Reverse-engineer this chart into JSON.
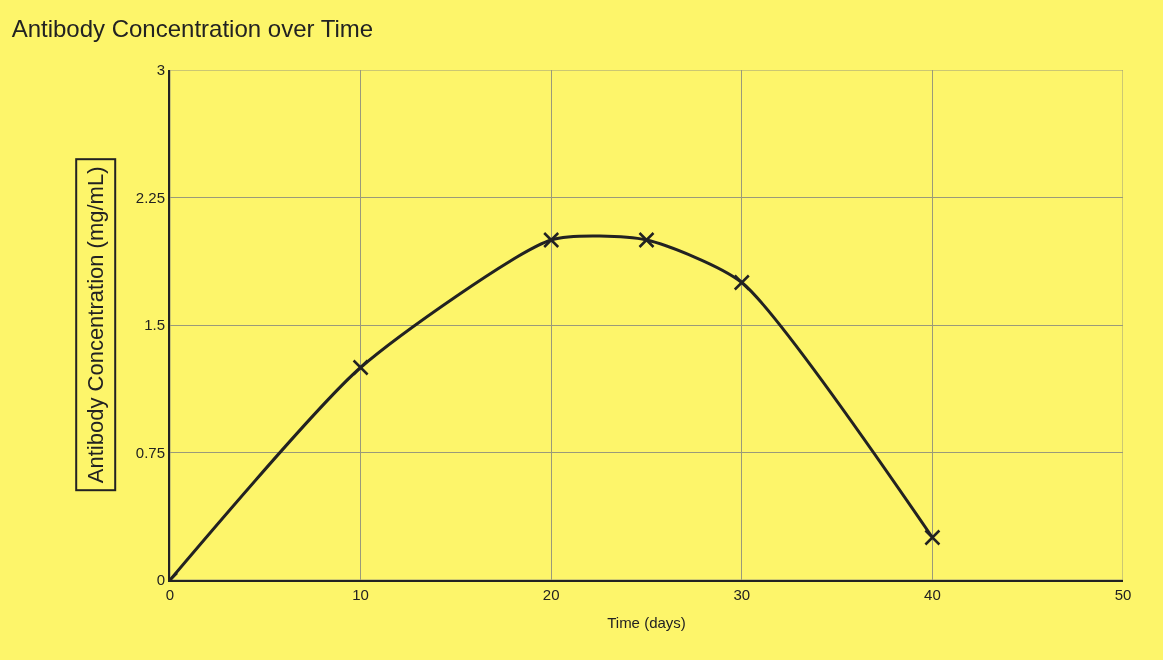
{
  "chart_data": {
    "type": "line",
    "title": "Antibody Concentration over Time",
    "xlabel": "Time (days)",
    "ylabel": "Antibody Concentration (mg/mL)",
    "x": [
      0,
      10,
      20,
      25,
      30,
      40
    ],
    "series": [
      {
        "color": "#222222",
        "values": [
          0,
          1.25,
          2.0,
          2.0,
          1.75,
          0.25
        ]
      }
    ],
    "xlim": [
      0,
      50
    ],
    "xticks": [
      0,
      10,
      20,
      30,
      40,
      50
    ],
    "ylim": [
      0,
      3
    ],
    "yticks": [
      0,
      0.75,
      1.5,
      2.25,
      3
    ],
    "grid": true,
    "marker": "cross",
    "line_style": "solid"
  }
}
